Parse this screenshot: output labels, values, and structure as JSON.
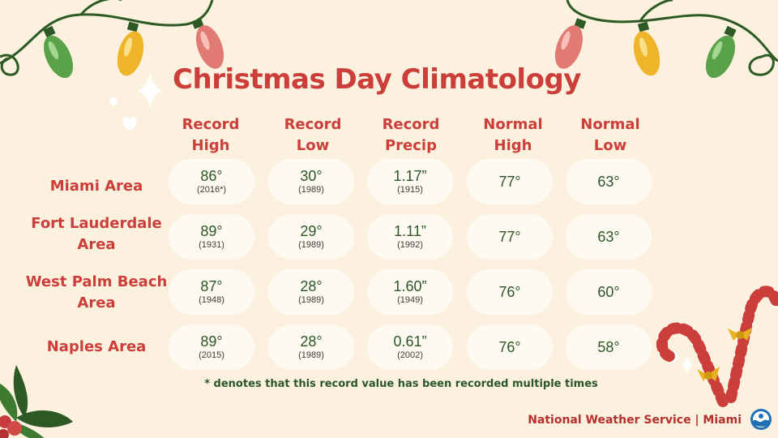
{
  "title": "Christmas Day Climatology",
  "columns": [
    {
      "line1": "Record",
      "line2": "High"
    },
    {
      "line1": "Record",
      "line2": "Low"
    },
    {
      "line1": "Record",
      "line2": "Precip"
    },
    {
      "line1": "Normal",
      "line2": "High"
    },
    {
      "line1": "Normal",
      "line2": "Low"
    }
  ],
  "rows": [
    {
      "label_line1": "Miami Area",
      "label_line2": "",
      "cells": [
        {
          "value": "86°",
          "year": "(2016*)"
        },
        {
          "value": "30°",
          "year": "(1989)"
        },
        {
          "value": "1.17”",
          "year": "(1915)"
        },
        {
          "value": "77°",
          "year": ""
        },
        {
          "value": "63°",
          "year": ""
        }
      ]
    },
    {
      "label_line1": "Fort Lauderdale",
      "label_line2": "Area",
      "cells": [
        {
          "value": "89°",
          "year": "(1931)"
        },
        {
          "value": "29°",
          "year": "(1989)"
        },
        {
          "value": "1.11”",
          "year": "(1992)"
        },
        {
          "value": "77°",
          "year": ""
        },
        {
          "value": "63°",
          "year": ""
        }
      ]
    },
    {
      "label_line1": "West Palm Beach",
      "label_line2": "Area",
      "cells": [
        {
          "value": "87°",
          "year": "(1948)"
        },
        {
          "value": "28°",
          "year": "(1989)"
        },
        {
          "value": "1.60”",
          "year": "(1949)"
        },
        {
          "value": "76°",
          "year": ""
        },
        {
          "value": "60°",
          "year": ""
        }
      ]
    },
    {
      "label_line1": "Naples Area",
      "label_line2": "",
      "cells": [
        {
          "value": "89°",
          "year": "(2015)"
        },
        {
          "value": "28°",
          "year": "(1989)"
        },
        {
          "value": "0.61”",
          "year": "(2002)"
        },
        {
          "value": "76°",
          "year": ""
        },
        {
          "value": "58°",
          "year": ""
        }
      ]
    }
  ],
  "footnote": "* denotes that this record value has been recorded multiple times",
  "credit": "National Weather Service | Miami",
  "colors": {
    "background": "#fbf1de",
    "accent_red": "#cc3e3a",
    "text_green": "#2c5628",
    "cell_bg": "#fffaf1"
  },
  "decorations": [
    "string-lights",
    "sparkle-icon",
    "heart-icon",
    "holly-leaves",
    "candy-canes",
    "noaa-logo"
  ]
}
